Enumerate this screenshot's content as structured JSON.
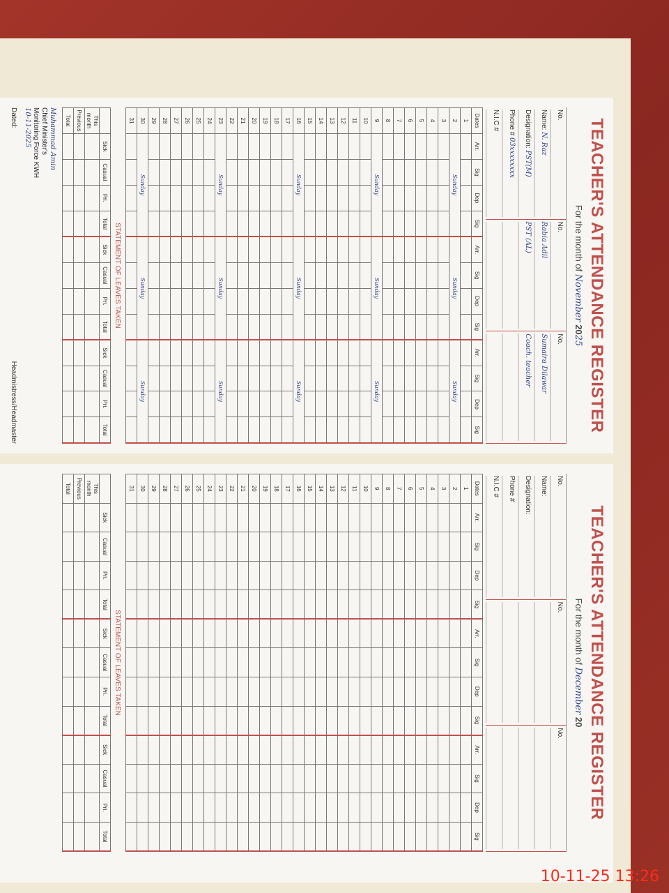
{
  "left_page": {
    "title": "TEACHER'S ATTENDANCE REGISTER",
    "month_label": "For the month of",
    "month_value": "November",
    "year_prefix": "20",
    "year_value": "25",
    "no_label": "No.",
    "labels": {
      "name": "Name:",
      "designation": "Designation:",
      "phone": "Phone #",
      "nic": "N.I.C #"
    },
    "teachers": [
      {
        "name": "N. Raz",
        "designation": "PST(M)",
        "phone": "03xxxxxxxx"
      },
      {
        "name": "Rabia Adil",
        "designation": "PST (AL)"
      },
      {
        "name": "Sumaira Dilawar",
        "designation": "Coach. teacher"
      }
    ],
    "columns": [
      "Dates",
      "Arr.",
      "Sig",
      "Dep",
      "Sig"
    ],
    "sunday_label": "Sunday",
    "sundays": [
      2,
      9,
      16,
      23,
      30
    ],
    "stamp": [
      "Muhammad Amin",
      "Chief Minister's",
      "Monitoring Force KWH",
      "10-11-2025"
    ],
    "leaves_title": "STATEMENT OF LEAVES TAKEN",
    "leave_columns": [
      "Sick",
      "Casual",
      "Pri.",
      "Total"
    ],
    "leave_rows": [
      "This month",
      "Previous",
      "Total"
    ],
    "dated_label": "Dated:",
    "head_label": "Headmistress/Headmaster"
  },
  "right_page": {
    "title": "TEACHER'S ATTENDANCE REGISTER",
    "month_label": "For the month of",
    "month_value": "December",
    "year_prefix": "20",
    "year_value": "",
    "no_label": "No.",
    "labels": {
      "name": "Name:",
      "designation": "Designation:",
      "phone": "Phone #",
      "nic": "N.I.C #"
    },
    "columns": [
      "Dates",
      "Arr.",
      "Sig",
      "Dep",
      "Sig"
    ],
    "leaves_title": "STATEMENT OF LEAVES TAKEN",
    "leave_columns": [
      "Sick",
      "Casual",
      "Pri.",
      "Total"
    ],
    "leave_rows": [
      "This month",
      "Previous",
      "Total"
    ]
  },
  "timestamp": "10-11-25  13:26",
  "colors": {
    "title": "#c0504d",
    "table": "#9a3026",
    "timestamp": "#ff2a1a"
  }
}
